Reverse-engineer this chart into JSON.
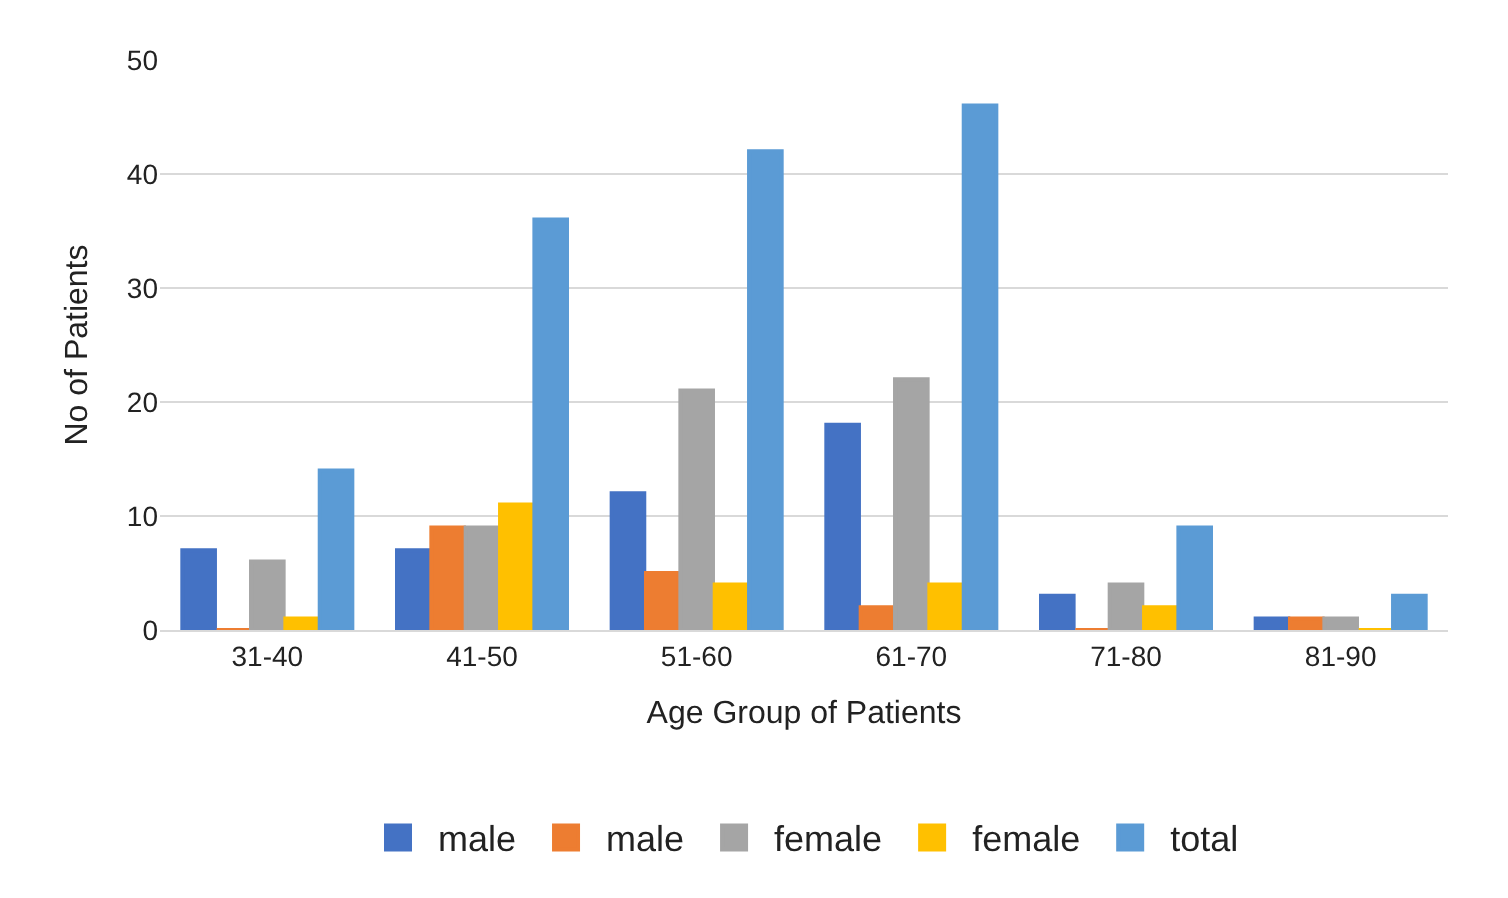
{
  "chart_data": {
    "type": "bar",
    "xlabel": "Age Group of Patients",
    "ylabel": "No of Patients",
    "categories": [
      "31-40",
      "41-50",
      "51-60",
      "61-70",
      "71-80",
      "81-90"
    ],
    "series": [
      {
        "name": "male",
        "color": "#4472c4",
        "values": [
          7,
          7,
          12,
          18,
          3,
          1
        ]
      },
      {
        "name": "male",
        "color": "#ed7d31",
        "values": [
          0,
          9,
          5,
          2,
          0,
          1
        ]
      },
      {
        "name": "female",
        "color": "#a5a5a5",
        "values": [
          6,
          9,
          21,
          22,
          4,
          1
        ]
      },
      {
        "name": "female",
        "color": "#ffc000",
        "values": [
          1,
          11,
          4,
          4,
          2,
          0
        ]
      },
      {
        "name": "total",
        "color": "#5b9bd5",
        "values": [
          14,
          36,
          42,
          46,
          9,
          3
        ]
      }
    ],
    "ylim": [
      0,
      50
    ],
    "yticks": [
      0,
      10,
      20,
      30,
      40,
      50
    ],
    "grid": "y",
    "legend": "bottom"
  }
}
